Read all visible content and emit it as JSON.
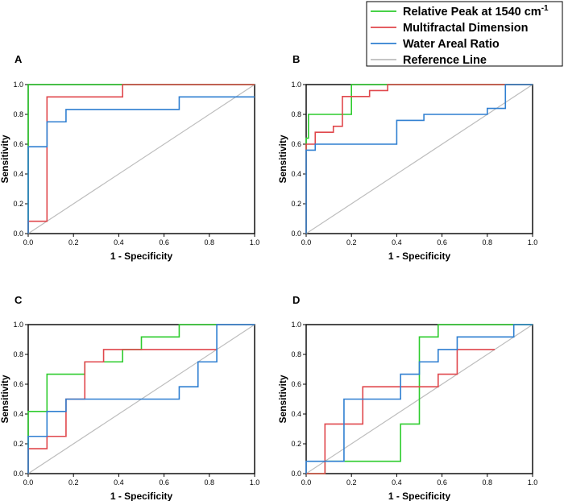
{
  "chart_data": {
    "type": "line",
    "title": "",
    "legend": {
      "placement": "top-right",
      "entries": [
        {
          "label": "Relative Peak at 1540 cm",
          "superscript": "-1",
          "color": "#2ecc2e"
        },
        {
          "label": "Multifractal Dimension",
          "color": "#e0474c"
        },
        {
          "label": "Water Areal Ratio",
          "color": "#2f7fd1"
        },
        {
          "label": "Reference Line",
          "color": "#bdbdbd"
        }
      ]
    },
    "xlabel": "1 - Specificity",
    "ylabel": "Sensitivity",
    "xlim": [
      0,
      1
    ],
    "ylim": [
      0,
      1
    ],
    "xticks": [
      "0.0",
      "0.2",
      "0.4",
      "0.6",
      "0.8",
      "1.0"
    ],
    "yticks": [
      "0.0",
      "0.2",
      "0.4",
      "0.6",
      "0.8",
      "1.0"
    ],
    "panels": [
      {
        "label": "A",
        "series": [
          {
            "name": "Relative Peak at 1540 cm-1",
            "color": "#2ecc2e",
            "x": [
              0,
              0,
              0.417,
              1
            ],
            "y": [
              0,
              1,
              1,
              1
            ]
          },
          {
            "name": "Multifractal Dimension",
            "color": "#e0474c",
            "x": [
              0,
              0,
              0.083,
              0.083,
              0.417,
              0.417,
              1
            ],
            "y": [
              0,
              0.083,
              0.083,
              0.917,
              0.917,
              1,
              1
            ]
          },
          {
            "name": "Water Areal Ratio",
            "color": "#2f7fd1",
            "x": [
              0,
              0,
              0.083,
              0.083,
              0.167,
              0.167,
              0.667,
              0.667,
              1
            ],
            "y": [
              0,
              0.583,
              0.583,
              0.75,
              0.75,
              0.833,
              0.833,
              0.917,
              0.917
            ]
          },
          {
            "name": "Reference Line",
            "color": "#bdbdbd",
            "x": [
              0,
              1
            ],
            "y": [
              0,
              1
            ]
          }
        ]
      },
      {
        "label": "B",
        "series": [
          {
            "name": "Relative Peak at 1540 cm-1",
            "color": "#2ecc2e",
            "x": [
              0,
              0,
              0.01,
              0.01,
              0.2,
              0.2,
              0.4,
              1
            ],
            "y": [
              0,
              0.64,
              0.64,
              0.8,
              0.8,
              1,
              1,
              1
            ]
          },
          {
            "name": "Multifractal Dimension",
            "color": "#e0474c",
            "x": [
              0,
              0,
              0.04,
              0.04,
              0.12,
              0.12,
              0.16,
              0.16,
              0.28,
              0.28,
              0.36,
              0.36,
              0.88,
              1
            ],
            "y": [
              0,
              0.6,
              0.6,
              0.68,
              0.68,
              0.72,
              0.72,
              0.92,
              0.92,
              0.96,
              0.96,
              1,
              1,
              1
            ]
          },
          {
            "name": "Water Areal Ratio",
            "color": "#2f7fd1",
            "x": [
              0,
              0,
              0.04,
              0.04,
              0.4,
              0.4,
              0.52,
              0.52,
              0.8,
              0.8,
              0.88,
              0.88,
              1
            ],
            "y": [
              0,
              0.56,
              0.56,
              0.6,
              0.6,
              0.76,
              0.76,
              0.8,
              0.8,
              0.84,
              0.84,
              1,
              1
            ]
          },
          {
            "name": "Reference Line",
            "color": "#bdbdbd",
            "x": [
              0,
              1
            ],
            "y": [
              0,
              1
            ]
          }
        ]
      },
      {
        "label": "C",
        "series": [
          {
            "name": "Relative Peak at 1540 cm-1",
            "color": "#2ecc2e",
            "x": [
              0,
              0,
              0.083,
              0.083,
              0.25,
              0.25,
              0.417,
              0.417,
              0.5,
              0.5,
              0.667,
              0.667,
              0.833
            ],
            "y": [
              0,
              0.417,
              0.417,
              0.667,
              0.667,
              0.75,
              0.75,
              0.833,
              0.833,
              0.917,
              0.917,
              1,
              1
            ]
          },
          {
            "name": "Multifractal Dimension",
            "color": "#e0474c",
            "x": [
              0,
              0,
              0.083,
              0.083,
              0.167,
              0.167,
              0.25,
              0.25,
              0.333,
              0.333,
              0.833
            ],
            "y": [
              0,
              0.167,
              0.167,
              0.25,
              0.25,
              0.5,
              0.5,
              0.75,
              0.75,
              0.833,
              0.833
            ]
          },
          {
            "name": "Water Areal Ratio",
            "color": "#2f7fd1",
            "x": [
              0,
              0,
              0.083,
              0.083,
              0.167,
              0.167,
              0.667,
              0.667,
              0.75,
              0.75,
              0.833,
              0.833,
              1
            ],
            "y": [
              0,
              0.25,
              0.25,
              0.417,
              0.417,
              0.5,
              0.5,
              0.583,
              0.583,
              0.75,
              0.75,
              1,
              1
            ]
          },
          {
            "name": "Reference Line",
            "color": "#bdbdbd",
            "x": [
              0,
              1
            ],
            "y": [
              0,
              1
            ]
          }
        ]
      },
      {
        "label": "D",
        "series": [
          {
            "name": "Relative Peak at 1540 cm-1",
            "color": "#2ecc2e",
            "x": [
              0,
              0.083,
              0.083,
              0.417,
              0.417,
              0.5,
              0.5,
              0.583,
              0.583,
              1
            ],
            "y": [
              0,
              0,
              0.083,
              0.083,
              0.333,
              0.333,
              0.917,
              0.917,
              1,
              1
            ]
          },
          {
            "name": "Multifractal Dimension",
            "color": "#e0474c",
            "x": [
              0,
              0.083,
              0.083,
              0.25,
              0.25,
              0.583,
              0.583,
              0.667,
              0.667,
              0.833
            ],
            "y": [
              0,
              0,
              0.333,
              0.333,
              0.583,
              0.583,
              0.667,
              0.667,
              0.833,
              0.833
            ]
          },
          {
            "name": "Water Areal Ratio",
            "color": "#2f7fd1",
            "x": [
              0,
              0,
              0.083,
              0.083,
              0.167,
              0.167,
              0.417,
              0.417,
              0.5,
              0.5,
              0.583,
              0.583,
              0.667,
              0.667,
              0.917,
              0.917,
              1
            ],
            "y": [
              0,
              0.083,
              0.083,
              0.083,
              0.083,
              0.5,
              0.5,
              0.667,
              0.667,
              0.75,
              0.75,
              0.833,
              0.833,
              0.917,
              0.917,
              1,
              1
            ]
          },
          {
            "name": "Reference Line",
            "color": "#bdbdbd",
            "x": [
              0,
              1
            ],
            "y": [
              0,
              1
            ]
          }
        ]
      }
    ]
  }
}
